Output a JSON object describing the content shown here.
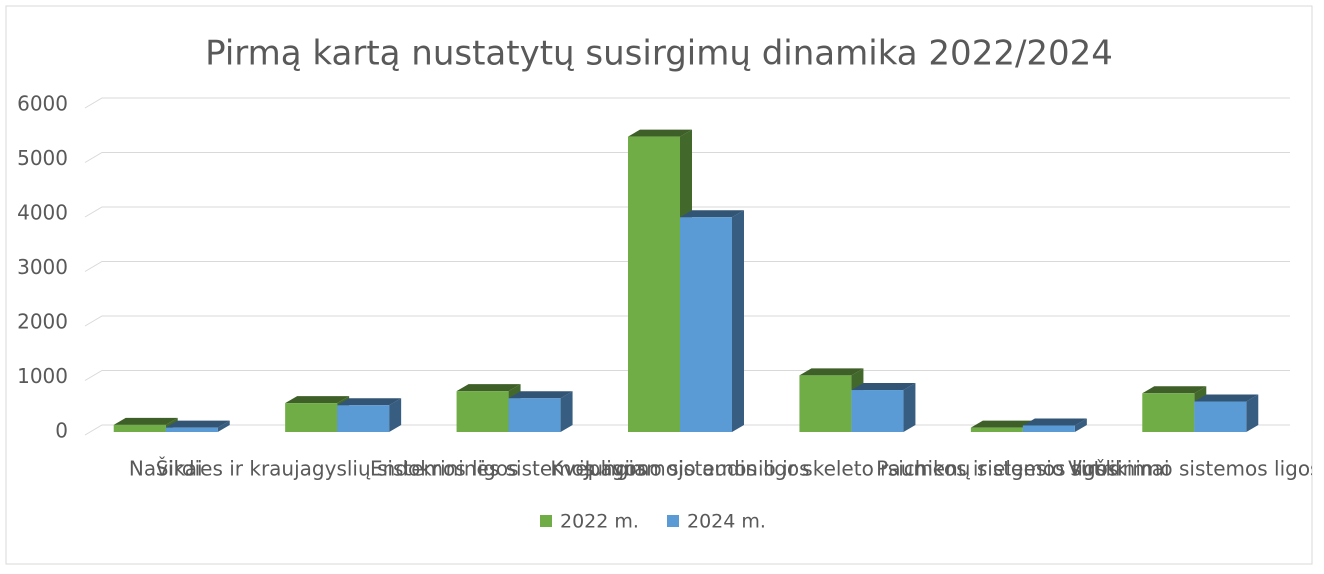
{
  "chart_data": {
    "type": "bar3d",
    "title": "Pirmą kartą nustatytų susirgimų dinamika 2022/2024",
    "categories": [
      "Navikai",
      "Širdies ir kraujagyslių sistemos ligos",
      "Endokrininės sistemos ligos",
      "Kvėpavimo sistemos ligos",
      "Jungiamojo audinio ir skeleto raumenų sistemos ligos",
      "Psichikos ir elgesio sutrikimai",
      "Virškinimo sistemos ligos"
    ],
    "series": [
      {
        "name": "2022 m.",
        "color": "#70ad47",
        "values": [
          130,
          530,
          750,
          5420,
          1040,
          80,
          710
        ]
      },
      {
        "name": "2024 m.",
        "color": "#5b9bd5",
        "values": [
          80,
          490,
          620,
          3940,
          770,
          120,
          560
        ]
      }
    ],
    "ylim": [
      0,
      6000
    ],
    "yticks": [
      0,
      1000,
      2000,
      3000,
      4000,
      5000,
      6000
    ],
    "grid": true,
    "legend": "bottom"
  }
}
